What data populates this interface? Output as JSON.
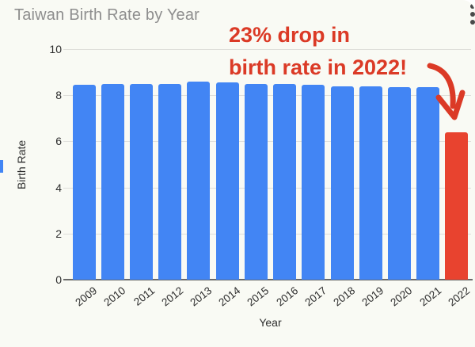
{
  "colors": {
    "page_bg": "#ffffff",
    "card_bg": "#f9faf4",
    "bar_blue": "#4285f4",
    "bar_red": "#e8432f",
    "annotation_red": "#db3a26",
    "title_gray": "#8e8e8e",
    "axis_text": "#2d2d2d",
    "gridline": "#dededa",
    "baseline": "#6a6a6a",
    "kebab": "#4a4a4a"
  },
  "window": {
    "kebab_menu_icon": "vertical-ellipsis"
  },
  "chart_data": {
    "type": "bar",
    "title": "Taiwan Birth Rate by Year",
    "xlabel": "Year",
    "ylabel": "Birth Rate",
    "categories": [
      "2009",
      "2010",
      "2011",
      "2012",
      "2013",
      "2014",
      "2015",
      "2016",
      "2017",
      "2018",
      "2019",
      "2020",
      "2021",
      "2022"
    ],
    "values": [
      8.45,
      8.5,
      8.5,
      8.5,
      8.6,
      8.55,
      8.5,
      8.5,
      8.45,
      8.4,
      8.4,
      8.35,
      8.35,
      6.4
    ],
    "highlight_index": 13,
    "ylim": [
      0,
      10
    ],
    "yticks": [
      0,
      2,
      4,
      6,
      8,
      10
    ],
    "grid": true,
    "legend": "none",
    "annotation": {
      "line1": "23% drop in",
      "line2": "birth rate in 2022!"
    }
  }
}
